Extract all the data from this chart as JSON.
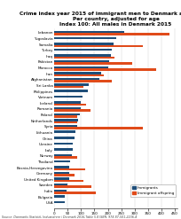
{
  "title": "Crime index year 2015 of immigrant men to Denmark ages 15-79\nPer country, adjusted for age\nIndex 100: All males in Denmark 2015",
  "countries": [
    "Lebanon",
    "Yugoslavia",
    "Somalia",
    "Turkey",
    "Iraq",
    "Pakistan",
    "Morocco",
    "Iran",
    "Afghanistan",
    "Sri Lanka",
    "Philippines",
    "Vietnam",
    "Iceland",
    "Romania",
    "Poland",
    "Netherlands",
    "Syria",
    "Lithuania",
    "China",
    "Ukraine",
    "Italy",
    "Norway",
    "Thailand",
    "Bosnia-Herzegovina",
    "Germany",
    "United Kingdom",
    "Sweden",
    "India",
    "Bulgaria",
    "USA"
  ],
  "immigrants": [
    260,
    230,
    220,
    215,
    210,
    205,
    200,
    175,
    170,
    130,
    125,
    105,
    100,
    100,
    95,
    90,
    85,
    80,
    75,
    70,
    70,
    65,
    60,
    55,
    55,
    55,
    50,
    45,
    40,
    40
  ],
  "offspring": [
    430,
    0,
    330,
    0,
    225,
    290,
    380,
    185,
    215,
    110,
    0,
    0,
    120,
    135,
    85,
    85,
    330,
    0,
    0,
    0,
    0,
    85,
    0,
    115,
    75,
    110,
    140,
    155,
    0,
    0
  ],
  "color_immigrants": "#1f4e79",
  "color_offspring": "#e04b1a",
  "xlim": [
    0,
    460
  ],
  "xticks": [
    0,
    50,
    100,
    150,
    200,
    250,
    300,
    350,
    400,
    450
  ],
  "xtick_labels": [
    "0",
    "50",
    "100",
    "150",
    "200",
    "250",
    "300",
    "350",
    "400",
    "450"
  ],
  "source": "Source: Danmarks Statistik, Indvandrere i Denmark 2016,Table 5.8 ISBN: 978-87-501-2236-4",
  "legend_immigrants": "Immigrants",
  "legend_offspring": "Immigrant offspring",
  "bar_height": 0.38,
  "title_fontsize": 4.2,
  "tick_fontsize": 3.0,
  "source_fontsize": 2.3
}
